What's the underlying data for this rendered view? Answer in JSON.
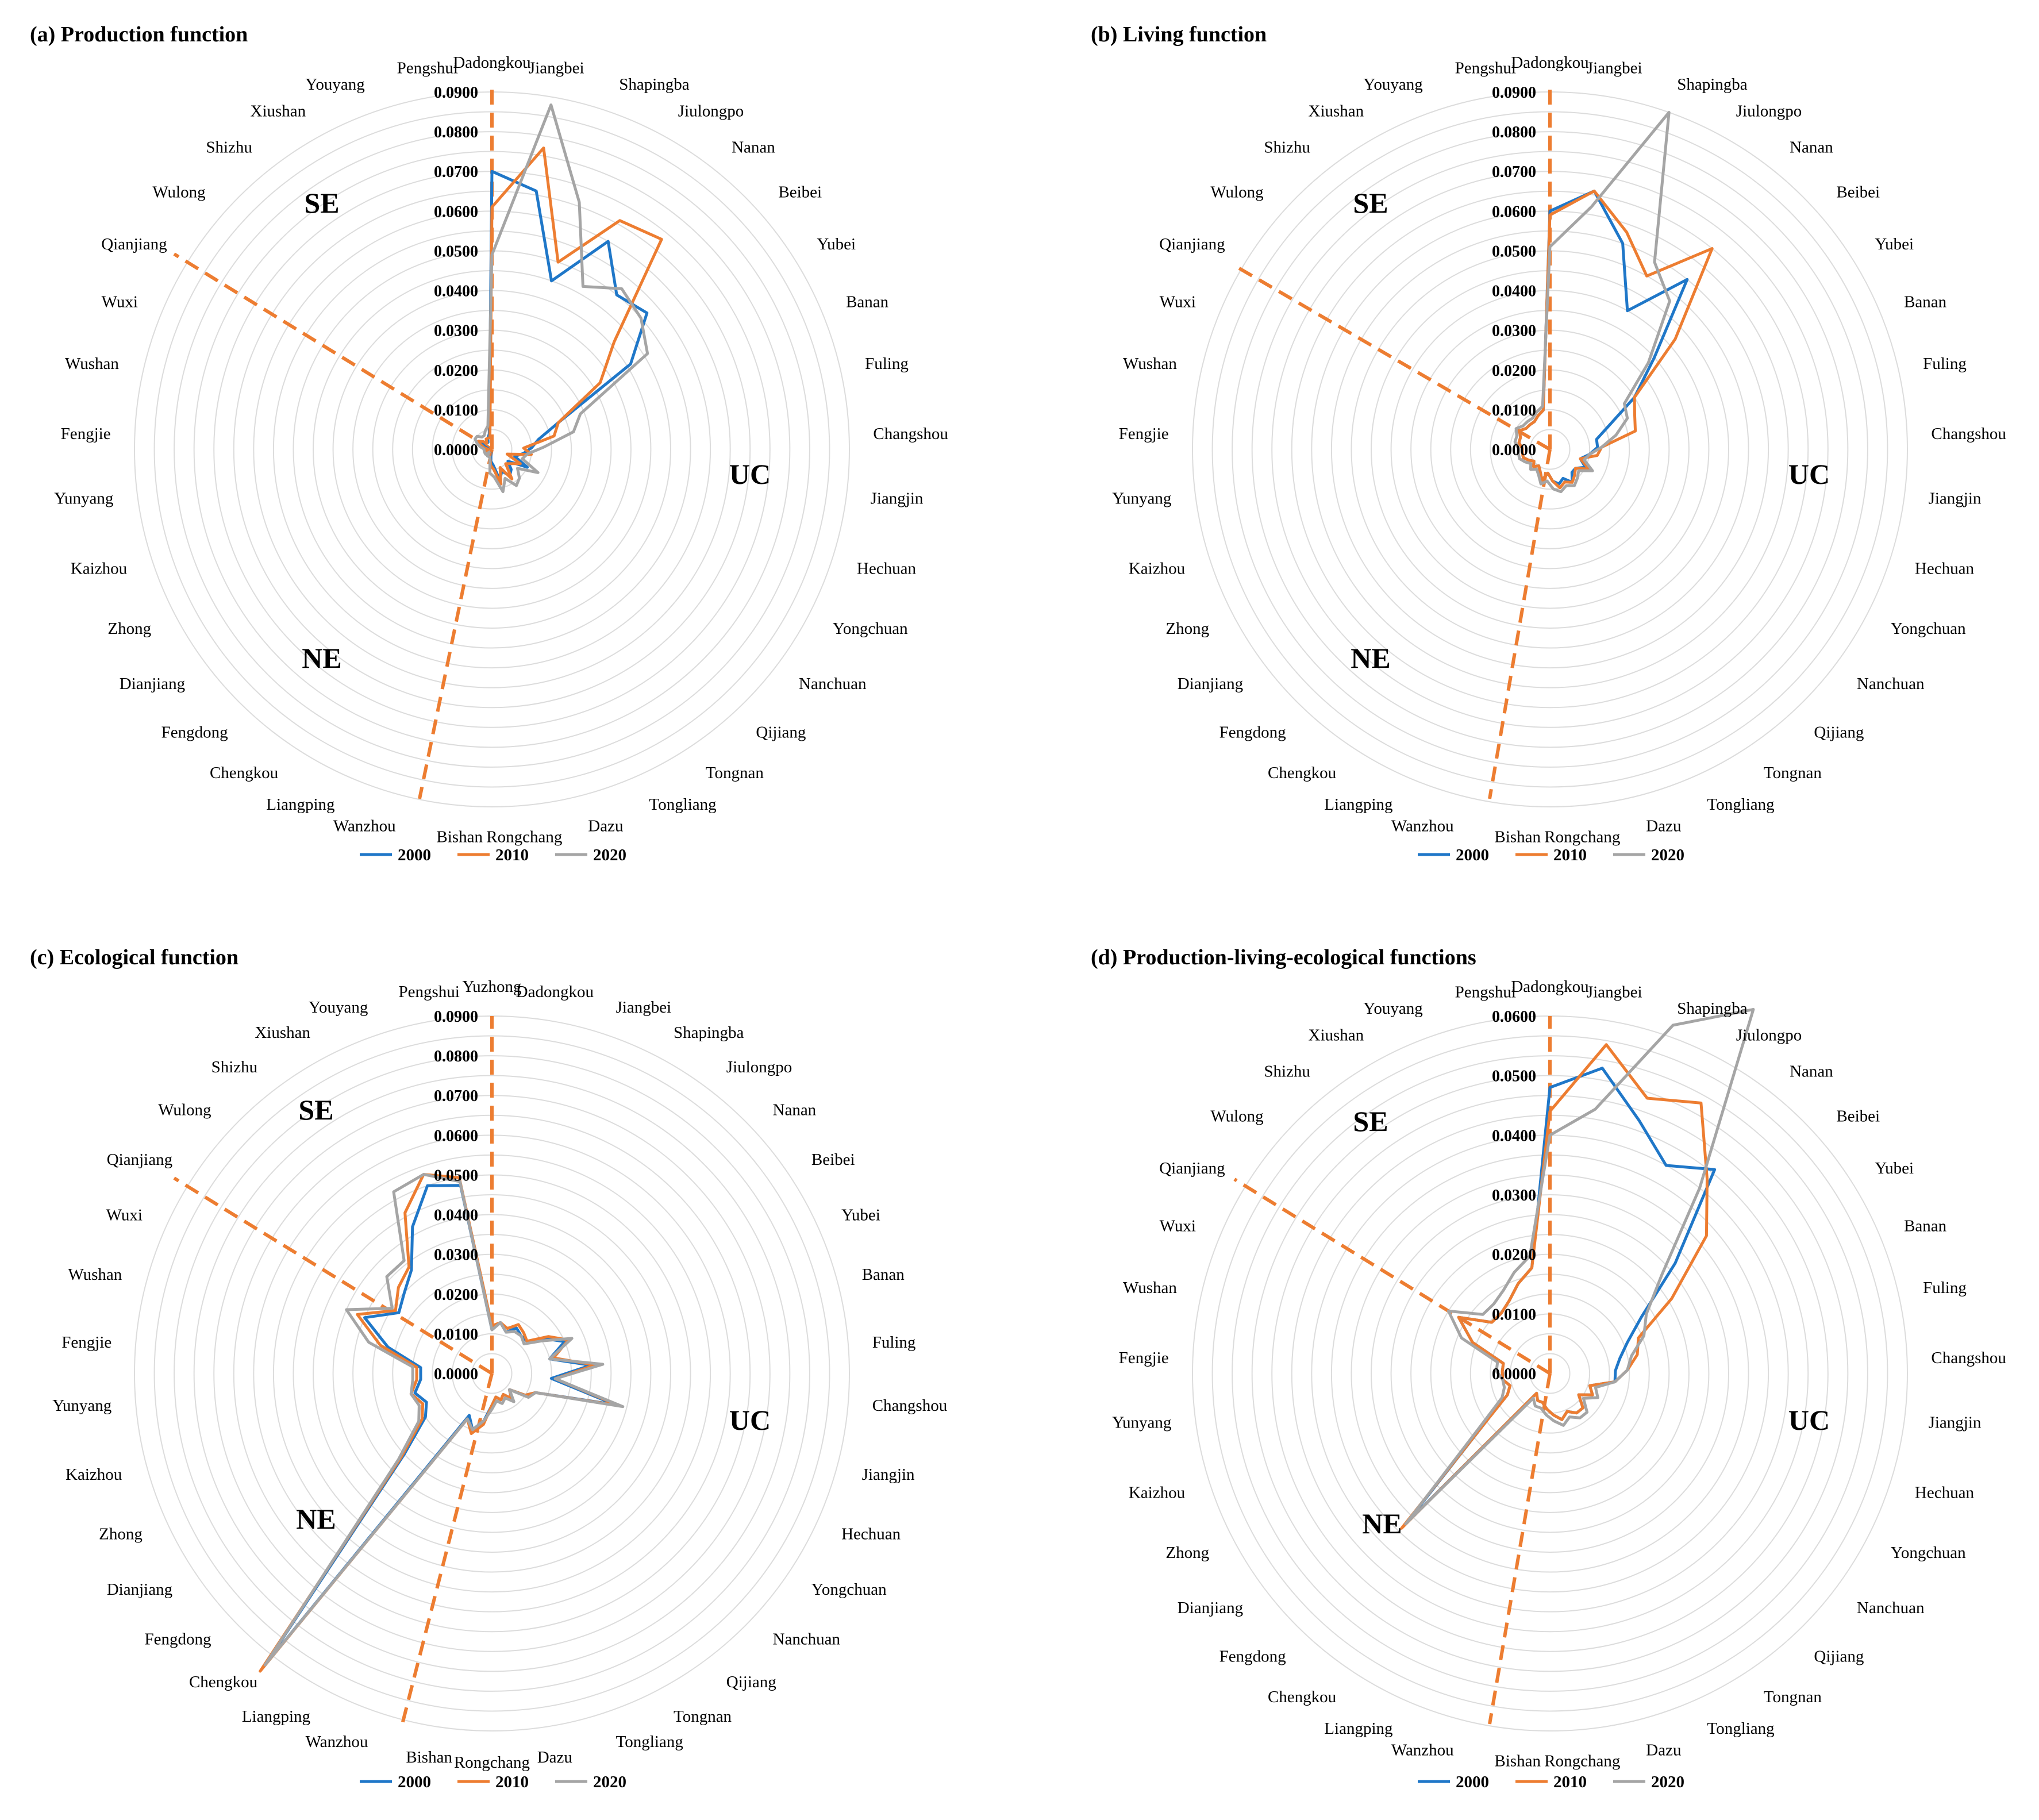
{
  "figure": {
    "years": [
      "2000",
      "2010",
      "2020"
    ],
    "colors": {
      "2000": "#1F77C8",
      "2010": "#ED7D31",
      "2020": "#A5A5A5",
      "divider": "#ED7D31",
      "grid": "#DCDCDC"
    },
    "regions": [
      "SE",
      "UC",
      "NE"
    ]
  },
  "chart_data": [
    {
      "type": "radar",
      "title": "(a) Production function",
      "categories": [
        "Dadongkou",
        "Jiangbei",
        "Shapingba",
        "Jiulongpo",
        "Nanan",
        "Beibei",
        "Yubei",
        "Banan",
        "Fuling",
        "Changshou",
        "Jiangjin",
        "Hechuan",
        "Yongchuan",
        "Nanchuan",
        "Qijiang",
        "Tongnan",
        "Tongliang",
        "Dazu",
        "Rongchang",
        "Bishan",
        "Wanzhou",
        "Liangping",
        "Chengkou",
        "Fengdong",
        "Dianjiang",
        "Zhong",
        "Kaizhou",
        "Yunyang",
        "Fengjie",
        "Wushan",
        "Wuxi",
        "Qianjiang",
        "Wulong",
        "Shizhu",
        "Xiushan",
        "Youyang",
        "Pengshui"
      ],
      "ticks": [
        "0.0000",
        "0.0100",
        "0.0200",
        "0.0300",
        "0.0400",
        "0.0500",
        "0.0600",
        "0.0700",
        "0.0800",
        "0.0900"
      ],
      "rmax": 0.09,
      "series": [
        {
          "name": "2000",
          "values": [
            0.07,
            0.066,
            0.045,
            0.06,
            0.05,
            0.052,
            0.041,
            0.018,
            0.012,
            0.01,
            0.008,
            0.006,
            0.01,
            0.005,
            0.007,
            0.008,
            0.006,
            0.008,
            0.004,
            0.003,
            0.001,
            0.001,
            0.001,
            0.001,
            0.002,
            0.001,
            0.001,
            0.001,
            0.001,
            0.001,
            0.002,
            0.003,
            0.003,
            0.002,
            0.002,
            0.003,
            0.004
          ]
        },
        {
          "name": "2010",
          "values": [
            0.061,
            0.077,
            0.05,
            0.066,
            0.068,
            0.041,
            0.032,
            0.018,
            0.016,
            0.008,
            0.01,
            0.004,
            0.008,
            0.006,
            0.005,
            0.009,
            0.005,
            0.009,
            0.005,
            0.004,
            0.002,
            0.001,
            0.001,
            0.001,
            0.002,
            0.001,
            0.002,
            0.001,
            0.001,
            0.002,
            0.003,
            0.004,
            0.003,
            0.002,
            0.003,
            0.003,
            0.003
          ]
        },
        {
          "name": "2020",
          "values": [
            0.049,
            0.088,
            0.066,
            0.047,
            0.052,
            0.05,
            0.046,
            0.024,
            0.021,
            0.013,
            0.009,
            0.008,
            0.013,
            0.008,
            0.01,
            0.011,
            0.008,
            0.011,
            0.007,
            0.006,
            0.002,
            0.002,
            0.002,
            0.001,
            0.002,
            0.002,
            0.002,
            0.002,
            0.002,
            0.003,
            0.004,
            0.005,
            0.005,
            0.004,
            0.004,
            0.005,
            0.006
          ]
        }
      ]
    },
    {
      "type": "radar",
      "title": "(b) Living function",
      "categories": [
        "Dadongkou",
        "Jiangbei",
        "Shapingba",
        "Jiulongpo",
        "Nanan",
        "Beibei",
        "Yubei",
        "Banan",
        "Fuling",
        "Changshou",
        "Jiangjin",
        "Hechuan",
        "Yongchuan",
        "Nanchuan",
        "Qijiang",
        "Tongnan",
        "Tongliang",
        "Dazu",
        "Rongchang",
        "Bishan",
        "Wanzhou",
        "Liangping",
        "Chengkou",
        "Fengdong",
        "Dianjiang",
        "Zhong",
        "Kaizhou",
        "Yunyang",
        "Fengjie",
        "Wushan",
        "Wuxi",
        "Qianjiang",
        "Wulong",
        "Shizhu",
        "Xiushan",
        "Youyang",
        "Pengshui"
      ],
      "ticks": [
        "0.0000",
        "0.0100",
        "0.0200",
        "0.0300",
        "0.0400",
        "0.0500",
        "0.0600",
        "0.0700",
        "0.0800",
        "0.0900"
      ],
      "rmax": 0.09,
      "series": [
        {
          "name": "2000",
          "values": [
            0.06,
            0.066,
            0.055,
            0.04,
            0.055,
            0.035,
            0.025,
            0.016,
            0.012,
            0.012,
            0.01,
            0.008,
            0.01,
            0.008,
            0.008,
            0.01,
            0.008,
            0.009,
            0.008,
            0.006,
            0.008,
            0.006,
            0.005,
            0.006,
            0.005,
            0.006,
            0.007,
            0.007,
            0.007,
            0.008,
            0.008,
            0.009,
            0.008,
            0.008,
            0.008,
            0.009,
            0.01
          ]
        },
        {
          "name": "2010",
          "values": [
            0.059,
            0.066,
            0.058,
            0.05,
            0.065,
            0.042,
            0.025,
            0.023,
            0.022,
            0.013,
            0.012,
            0.008,
            0.011,
            0.008,
            0.009,
            0.01,
            0.009,
            0.01,
            0.008,
            0.006,
            0.008,
            0.006,
            0.005,
            0.006,
            0.005,
            0.006,
            0.007,
            0.007,
            0.007,
            0.008,
            0.008,
            0.009,
            0.008,
            0.008,
            0.008,
            0.009,
            0.01
          ]
        },
        {
          "name": "2020",
          "values": [
            0.051,
            0.062,
            0.09,
            0.054,
            0.048,
            0.033,
            0.022,
            0.021,
            0.017,
            0.013,
            0.01,
            0.009,
            0.012,
            0.009,
            0.01,
            0.011,
            0.01,
            0.011,
            0.01,
            0.008,
            0.009,
            0.007,
            0.006,
            0.007,
            0.006,
            0.007,
            0.008,
            0.008,
            0.008,
            0.009,
            0.009,
            0.01,
            0.009,
            0.009,
            0.009,
            0.01,
            0.011
          ]
        }
      ]
    },
    {
      "type": "radar",
      "title": "(c) Ecological function",
      "categories": [
        "Yuzhong",
        "Dadongkou",
        "Jiangbei",
        "Shapingba",
        "Jiulongpo",
        "Nanan",
        "Beibei",
        "Yubei",
        "Banan",
        "Fuling",
        "Changshou",
        "Jiangjin",
        "Hechuan",
        "Yongchuan",
        "Nanchuan",
        "Qijiang",
        "Tongnan",
        "Tongliang",
        "Dazu",
        "Rongchang",
        "Bishan",
        "Wanzhou",
        "Liangping",
        "Chengkou",
        "Fengdong",
        "Dianjiang",
        "Zhong",
        "Kaizhou",
        "Yunyang",
        "Fengjie",
        "Wushan",
        "Wuxi",
        "Qianjiang",
        "Wulong",
        "Shizhu",
        "Xiushan",
        "Youyang",
        "Pengshui"
      ],
      "ticks": [
        "0.0000",
        "0.0100",
        "0.0200",
        "0.0300",
        "0.0400",
        "0.0500",
        "0.0600",
        "0.0700",
        "0.0800",
        "0.0900"
      ],
      "rmax": 0.09,
      "series": [
        {
          "name": "2000",
          "values": [
            0.011,
            0.013,
            0.011,
            0.013,
            0.012,
            0.012,
            0.016,
            0.02,
            0.015,
            0.025,
            0.015,
            0.032,
            0.012,
            0.01,
            0.006,
            0.008,
            0.006,
            0.007,
            0.006,
            0.008,
            0.012,
            0.015,
            0.012,
            0.093,
            0.03,
            0.02,
            0.018,
            0.02,
            0.018,
            0.018,
            0.027,
            0.035,
            0.028,
            0.03,
            0.033,
            0.042,
            0.05,
            0.048
          ]
        },
        {
          "name": "2010",
          "values": [
            0.012,
            0.013,
            0.012,
            0.014,
            0.013,
            0.012,
            0.017,
            0.021,
            0.016,
            0.026,
            0.016,
            0.033,
            0.012,
            0.01,
            0.006,
            0.008,
            0.006,
            0.007,
            0.006,
            0.008,
            0.013,
            0.016,
            0.013,
            0.095,
            0.031,
            0.021,
            0.019,
            0.021,
            0.019,
            0.019,
            0.029,
            0.037,
            0.029,
            0.032,
            0.034,
            0.046,
            0.053,
            0.05
          ]
        },
        {
          "name": "2020",
          "values": [
            0.011,
            0.013,
            0.011,
            0.012,
            0.012,
            0.011,
            0.015,
            0.022,
            0.015,
            0.028,
            0.016,
            0.034,
            0.012,
            0.011,
            0.006,
            0.009,
            0.007,
            0.008,
            0.007,
            0.009,
            0.012,
            0.015,
            0.013,
            0.093,
            0.032,
            0.022,
            0.02,
            0.021,
            0.02,
            0.02,
            0.032,
            0.04,
            0.03,
            0.036,
            0.036,
            0.052,
            0.053,
            0.049
          ]
        }
      ]
    },
    {
      "type": "radar",
      "title": "(d) Production-living-ecological functions",
      "categories": [
        "Dadongkou",
        "Jiangbei",
        "Shapingba",
        "Jiulongpo",
        "Nanan",
        "Beibei",
        "Yubei",
        "Banan",
        "Fuling",
        "Changshou",
        "Jiangjin",
        "Hechuan",
        "Yongchuan",
        "Nanchuan",
        "Qijiang",
        "Tongnan",
        "Tongliang",
        "Dazu",
        "Rongchang",
        "Bishan",
        "Wanzhou",
        "Liangping",
        "Chengkou",
        "Fengdong",
        "Dianjiang",
        "Zhong",
        "Kaizhou",
        "Yunyang",
        "Fengjie",
        "Wushan",
        "Wuxi",
        "Qianjiang",
        "Wulong",
        "Shizhu",
        "Xiushan",
        "Youyang",
        "Pengshui"
      ],
      "ticks": [
        "0.0000",
        "0.0100",
        "0.0200",
        "0.0300",
        "0.0400",
        "0.0500",
        "0.0600"
      ],
      "rmax": 0.06,
      "series": [
        {
          "name": "2000",
          "values": [
            0.048,
            0.052,
            0.045,
            0.04,
            0.044,
            0.028,
            0.018,
            0.014,
            0.012,
            0.011,
            0.011,
            0.007,
            0.008,
            0.006,
            0.008,
            0.008,
            0.007,
            0.008,
            0.007,
            0.006,
            0.005,
            0.005,
            0.004,
            0.035,
            0.013,
            0.008,
            0.007,
            0.008,
            0.008,
            0.008,
            0.014,
            0.018,
            0.013,
            0.013,
            0.014,
            0.016,
            0.018
          ]
        },
        {
          "name": "2010",
          "values": [
            0.044,
            0.056,
            0.049,
            0.052,
            0.042,
            0.035,
            0.024,
            0.016,
            0.015,
            0.013,
            0.011,
            0.007,
            0.008,
            0.006,
            0.008,
            0.008,
            0.007,
            0.008,
            0.007,
            0.006,
            0.005,
            0.005,
            0.004,
            0.036,
            0.013,
            0.008,
            0.007,
            0.008,
            0.008,
            0.008,
            0.014,
            0.018,
            0.013,
            0.013,
            0.014,
            0.016,
            0.018
          ]
        },
        {
          "name": "2020",
          "values": [
            0.04,
            0.045,
            0.062,
            0.07,
            0.04,
            0.025,
            0.019,
            0.017,
            0.014,
            0.013,
            0.011,
            0.008,
            0.009,
            0.007,
            0.009,
            0.009,
            0.008,
            0.009,
            0.008,
            0.007,
            0.006,
            0.006,
            0.005,
            0.035,
            0.014,
            0.009,
            0.008,
            0.008,
            0.009,
            0.009,
            0.016,
            0.02,
            0.015,
            0.015,
            0.016,
            0.018,
            0.02
          ]
        }
      ]
    }
  ]
}
